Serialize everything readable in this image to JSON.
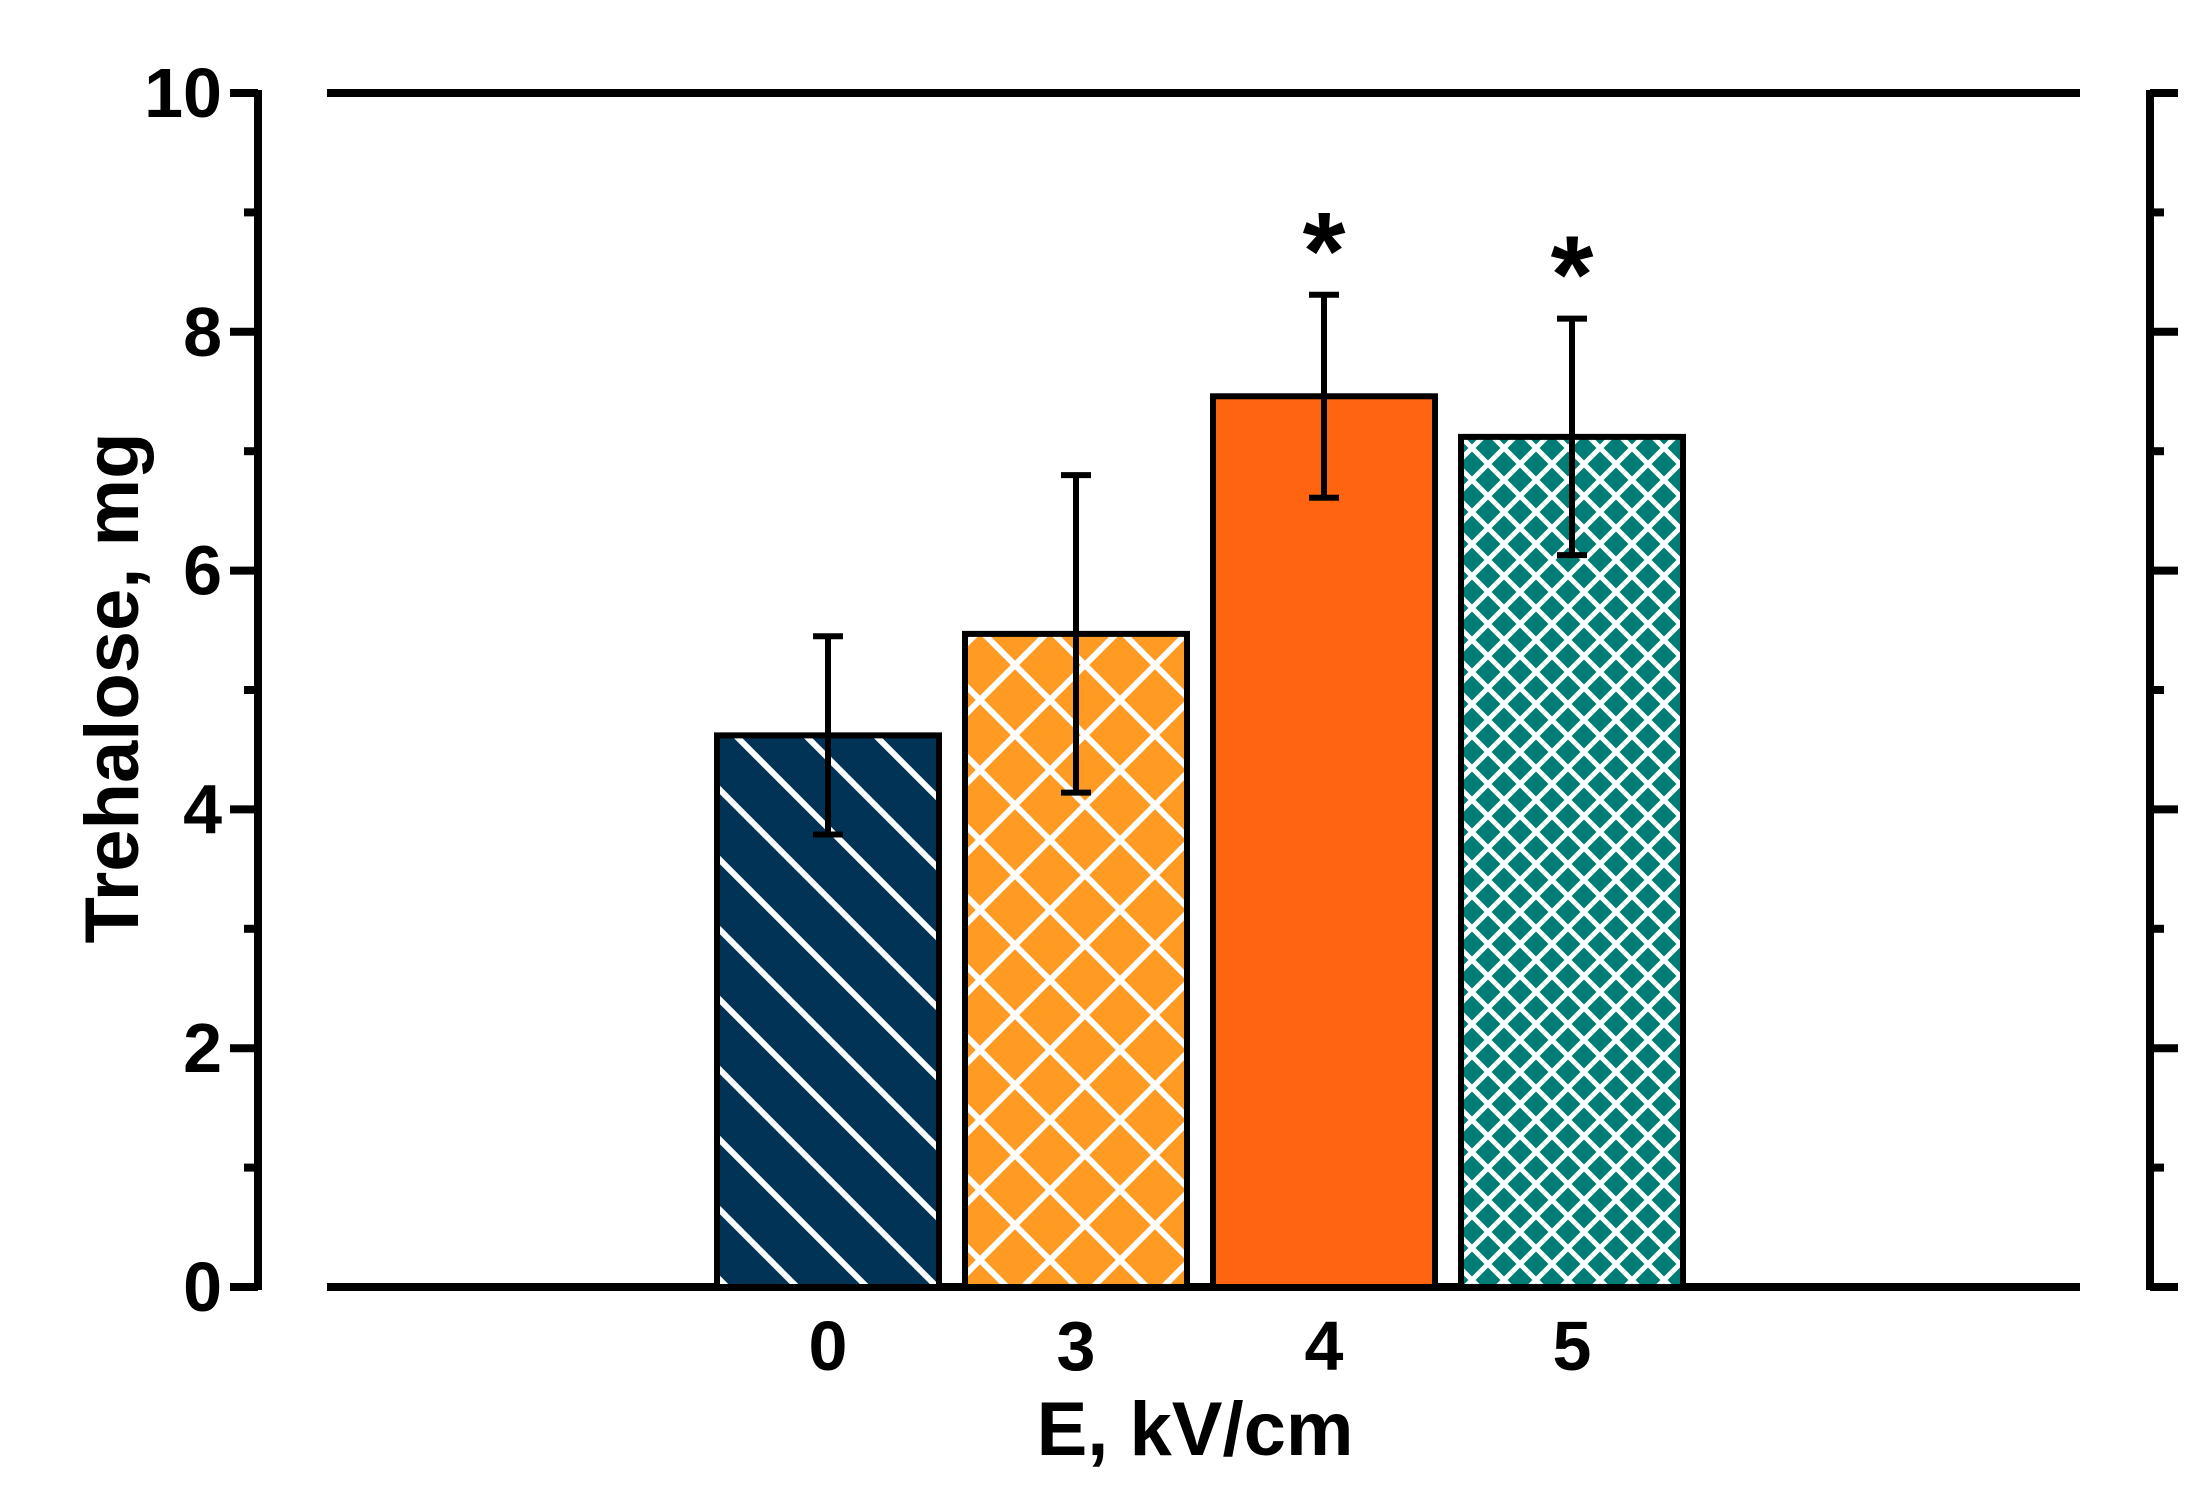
{
  "chart_data": {
    "type": "bar",
    "title": "",
    "xlabel": "E, kV/cm",
    "ylabel": "Trehalose, mg",
    "categories": [
      "0",
      "3",
      "4",
      "5"
    ],
    "values": [
      4.62,
      5.47,
      7.46,
      7.12
    ],
    "errors": [
      0.83,
      1.33,
      0.85,
      0.99
    ],
    "significance": [
      "",
      "",
      "*",
      "*"
    ],
    "patterns": [
      "diagonal",
      "crosshatch-large",
      "solid",
      "crosshatch-small"
    ],
    "colors": [
      "#003356",
      "#ff9a22",
      "#ff6511",
      "#007d74"
    ],
    "ylim": [
      0,
      10
    ],
    "yticks": [
      "0",
      "2",
      "4",
      "6",
      "8",
      "10"
    ],
    "ytick_values": [
      0,
      2,
      4,
      6,
      8,
      10
    ],
    "yminor_step": 1,
    "grid": false,
    "legend": "none"
  }
}
